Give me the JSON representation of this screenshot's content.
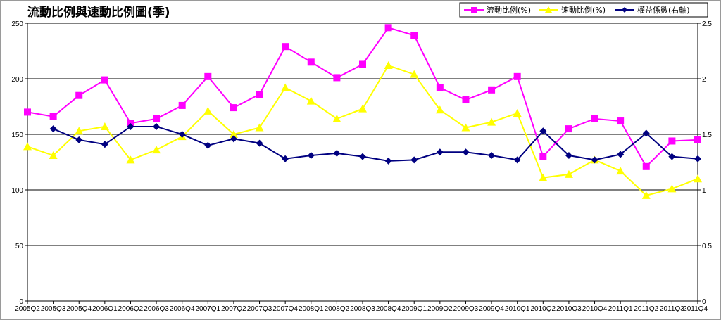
{
  "chart_data": {
    "type": "line",
    "title": "流動比例與速動比例圖(季)",
    "categories": [
      "2005Q2",
      "2005Q3",
      "2005Q4",
      "2006Q1",
      "2006Q2",
      "2006Q3",
      "2006Q4",
      "2007Q1",
      "2007Q2",
      "2007Q3",
      "2007Q4",
      "2008Q1",
      "2008Q2",
      "2008Q3",
      "2008Q4",
      "2009Q1",
      "2009Q2",
      "2009Q3",
      "2009Q4",
      "2010Q1",
      "2010Q2",
      "2010Q3",
      "2010Q4",
      "2011Q1",
      "2011Q2",
      "2011Q3",
      "2011Q4"
    ],
    "y_left": {
      "ylim": [
        0,
        250
      ],
      "ticks": [
        "0",
        "50",
        "100",
        "150",
        "200",
        "250"
      ]
    },
    "y_right": {
      "ylim": [
        0,
        2.5
      ],
      "ticks": [
        "0",
        "0.5",
        "1",
        "1.5",
        "2",
        "2.5"
      ]
    },
    "grid": true,
    "legend_position": "top-right",
    "series": [
      {
        "name": "流動比例(%)",
        "axis": "left",
        "color": "#ff00ff",
        "marker": "square",
        "values": [
          170,
          166,
          185,
          199,
          160,
          164,
          176,
          202,
          174,
          186,
          229,
          215,
          201,
          213,
          246,
          239,
          192,
          181,
          190,
          202,
          130,
          155,
          164,
          162,
          121,
          144,
          145
        ]
      },
      {
        "name": "速動比例(%)",
        "axis": "left",
        "color": "#ffff00",
        "marker": "triangle",
        "values": [
          139,
          131,
          153,
          157,
          127,
          136,
          148,
          171,
          150,
          156,
          192,
          180,
          164,
          173,
          212,
          204,
          172,
          156,
          161,
          169,
          111,
          114,
          127,
          117,
          95,
          101,
          110
        ]
      },
      {
        "name": "權益係數(右軸)",
        "axis": "right",
        "color": "#000080",
        "marker": "diamond",
        "values": [
          null,
          1.55,
          1.45,
          1.41,
          1.57,
          1.57,
          1.5,
          1.4,
          1.46,
          1.42,
          1.28,
          1.31,
          1.33,
          1.3,
          1.26,
          1.27,
          1.34,
          1.34,
          1.31,
          1.27,
          1.53,
          1.31,
          1.27,
          1.32,
          1.51,
          1.3,
          1.28
        ]
      }
    ]
  }
}
